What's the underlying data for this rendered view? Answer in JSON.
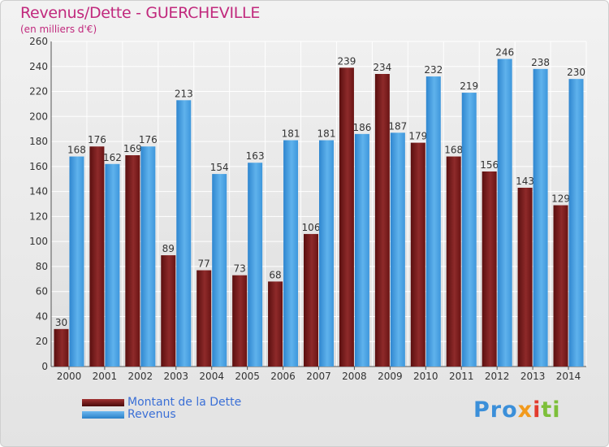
{
  "title": "Revenus/Dette - GUERCHEVILLE",
  "subtitle": "(en milliers d'€)",
  "colors": {
    "title": "#c1297d",
    "dette": "#7b1c1c",
    "revenus": "#3d9be0",
    "legend_text": "#3a6fd6",
    "grid": "#ffffff",
    "background": "#e8e8e8"
  },
  "logo": {
    "parts": [
      "Pro",
      "x",
      "i",
      "ti"
    ]
  },
  "legend": [
    {
      "label": "Montant de la Dette",
      "key": "dette"
    },
    {
      "label": "Revenus",
      "key": "revenus"
    }
  ],
  "chart_data": {
    "type": "bar",
    "title": "Revenus/Dette - GUERCHEVILLE",
    "subtitle": "(en milliers d'€)",
    "categories": [
      "2000",
      "2001",
      "2002",
      "2003",
      "2004",
      "2005",
      "2006",
      "2007",
      "2008",
      "2009",
      "2010",
      "2011",
      "2012",
      "2013",
      "2014"
    ],
    "series": [
      {
        "name": "Montant de la Dette",
        "key": "dette",
        "values": [
          30,
          176,
          169,
          89,
          77,
          73,
          68,
          106,
          239,
          234,
          179,
          168,
          156,
          143,
          129
        ]
      },
      {
        "name": "Revenus",
        "key": "revenus",
        "values": [
          168,
          162,
          176,
          213,
          154,
          163,
          181,
          181,
          186,
          187,
          232,
          219,
          246,
          238,
          230
        ]
      }
    ],
    "ylim": [
      0,
      260
    ],
    "yticks": [
      0,
      20,
      40,
      60,
      80,
      100,
      120,
      140,
      160,
      180,
      200,
      220,
      240,
      260
    ],
    "grid": true,
    "legend_position": "bottom-left",
    "xlabel": "",
    "ylabel": ""
  }
}
